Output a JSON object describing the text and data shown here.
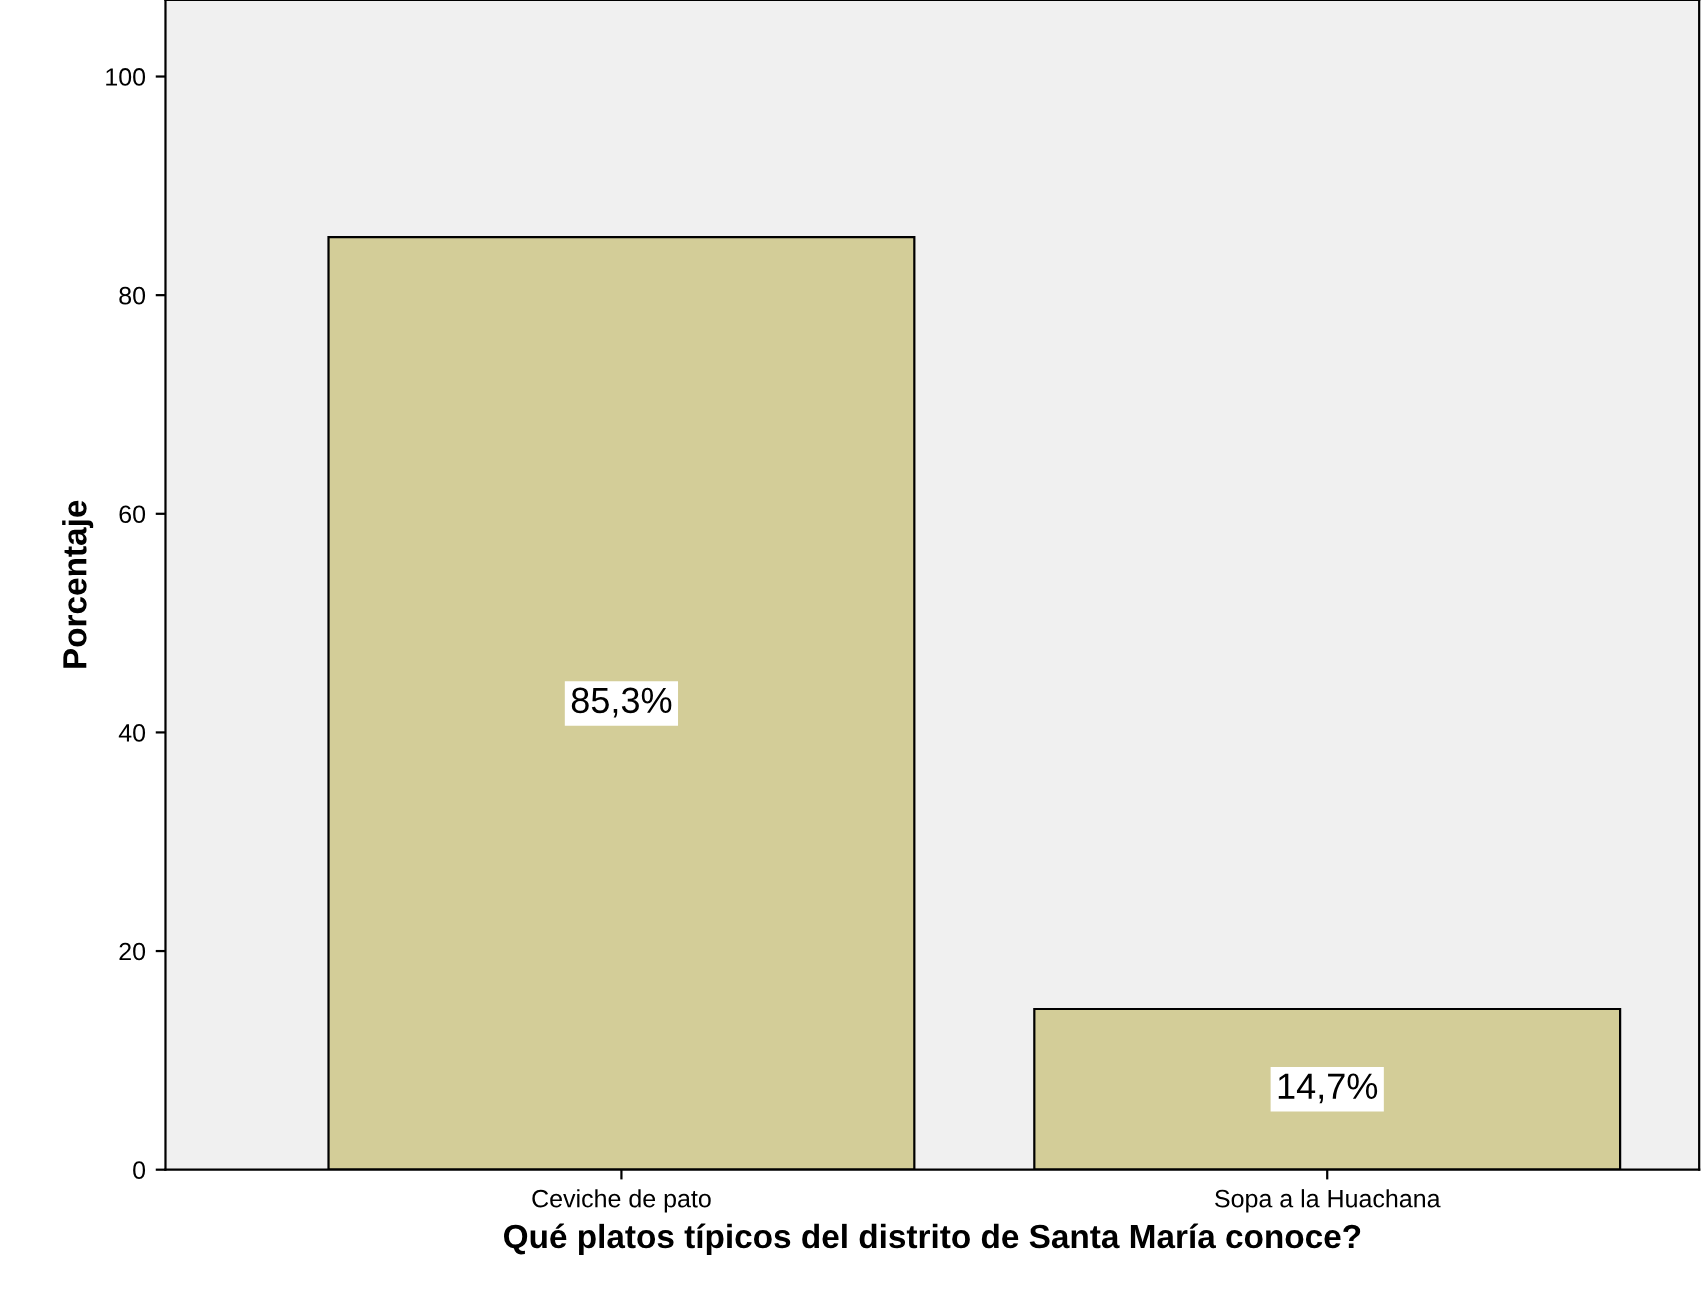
{
  "chart_data": {
    "type": "bar",
    "xlabel": "Qué platos típicos del distrito de Santa María conoce?",
    "ylabel": "Porcentaje",
    "categories": [
      "Ceviche de pato",
      "Sopa a la Huachana"
    ],
    "values": [
      85.3,
      14.7
    ],
    "value_labels": [
      "85,3%",
      "14,7%"
    ],
    "color": "#d3cd98",
    "ylim": [
      0,
      107
    ],
    "yticks": [
      0,
      20,
      40,
      60,
      80,
      100
    ],
    "grid": false
  }
}
